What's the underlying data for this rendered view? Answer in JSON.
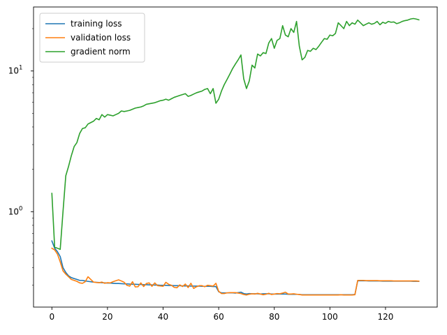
{
  "chart_data": {
    "type": "line",
    "title": "",
    "xlabel": "",
    "ylabel": "",
    "xlim": [
      -6.6,
      138.6
    ],
    "ylim": [
      0.21,
      28.5
    ],
    "yscale": "log",
    "grid": false,
    "legend_position": "upper-left",
    "x_ticks": [
      {
        "value": 0,
        "label": "0"
      },
      {
        "value": 20,
        "label": "20"
      },
      {
        "value": 40,
        "label": "40"
      },
      {
        "value": 60,
        "label": "60"
      },
      {
        "value": 80,
        "label": "80"
      },
      {
        "value": 100,
        "label": "100"
      },
      {
        "value": 120,
        "label": "120"
      }
    ],
    "y_ticks": [
      {
        "value": 1,
        "base": "10",
        "exp": "0"
      },
      {
        "value": 10,
        "base": "10",
        "exp": "1"
      }
    ],
    "series": [
      {
        "name": "training loss",
        "color": "#1f77b4",
        "x": [
          0,
          1,
          2,
          3,
          4,
          5,
          6,
          7,
          8,
          9,
          10,
          11,
          12,
          13,
          14,
          15,
          16,
          17,
          18,
          19,
          20,
          21,
          22,
          23,
          24,
          25,
          26,
          27,
          28,
          29,
          30,
          31,
          32,
          33,
          34,
          35,
          36,
          37,
          38,
          39,
          40,
          41,
          42,
          43,
          44,
          45,
          46,
          47,
          48,
          49,
          50,
          51,
          52,
          53,
          54,
          55,
          56,
          57,
          58,
          59,
          60,
          61,
          62,
          63,
          64,
          65,
          66,
          67,
          68,
          69,
          70,
          71,
          72,
          73,
          74,
          75,
          76,
          77,
          78,
          79,
          80,
          81,
          82,
          83,
          84,
          85,
          86,
          87,
          88,
          89,
          90,
          91,
          92,
          93,
          94,
          95,
          96,
          97,
          98,
          99,
          100,
          101,
          102,
          103,
          104,
          105,
          106,
          107,
          108,
          109,
          110,
          111,
          112,
          113,
          114,
          115,
          116,
          117,
          118,
          119,
          120,
          121,
          122,
          123,
          124,
          125,
          126,
          127,
          128,
          129,
          130,
          131,
          132
        ],
        "values": [
          0.62,
          0.55,
          0.52,
          0.48,
          0.4,
          0.37,
          0.35,
          0.34,
          0.335,
          0.33,
          0.325,
          0.325,
          0.322,
          0.32,
          0.318,
          0.316,
          0.315,
          0.314,
          0.313,
          0.312,
          0.311,
          0.311,
          0.31,
          0.309,
          0.309,
          0.308,
          0.307,
          0.307,
          0.306,
          0.305,
          0.305,
          0.304,
          0.304,
          0.303,
          0.303,
          0.302,
          0.302,
          0.301,
          0.301,
          0.3,
          0.3,
          0.3,
          0.299,
          0.299,
          0.298,
          0.298,
          0.298,
          0.297,
          0.297,
          0.297,
          0.296,
          0.296,
          0.296,
          0.296,
          0.295,
          0.295,
          0.295,
          0.295,
          0.294,
          0.294,
          0.27,
          0.265,
          0.265,
          0.265,
          0.265,
          0.265,
          0.264,
          0.266,
          0.268,
          0.262,
          0.26,
          0.262,
          0.261,
          0.261,
          0.261,
          0.26,
          0.261,
          0.261,
          0.261,
          0.26,
          0.26,
          0.26,
          0.26,
          0.26,
          0.26,
          0.259,
          0.259,
          0.259,
          0.259,
          0.258,
          0.257,
          0.257,
          0.257,
          0.257,
          0.257,
          0.257,
          0.257,
          0.257,
          0.257,
          0.257,
          0.257,
          0.257,
          0.257,
          0.257,
          0.257,
          0.257,
          0.257,
          0.257,
          0.257,
          0.258,
          0.323,
          0.323,
          0.323,
          0.323,
          0.322,
          0.322,
          0.322,
          0.322,
          0.322,
          0.321,
          0.321,
          0.321,
          0.321,
          0.321,
          0.321,
          0.321,
          0.321,
          0.321,
          0.321,
          0.321,
          0.32,
          0.32,
          0.32
        ]
      },
      {
        "name": "validation loss",
        "color": "#ff7f0e",
        "x": [
          0,
          1,
          2,
          3,
          4,
          5,
          6,
          7,
          8,
          9,
          10,
          11,
          12,
          13,
          14,
          15,
          16,
          17,
          18,
          19,
          20,
          21,
          22,
          23,
          24,
          25,
          26,
          27,
          28,
          29,
          30,
          31,
          32,
          33,
          34,
          35,
          36,
          37,
          38,
          39,
          40,
          41,
          42,
          43,
          44,
          45,
          46,
          47,
          48,
          49,
          50,
          51,
          52,
          53,
          54,
          55,
          56,
          57,
          58,
          59,
          60,
          61,
          62,
          63,
          64,
          65,
          66,
          67,
          68,
          69,
          70,
          71,
          72,
          73,
          74,
          75,
          76,
          77,
          78,
          79,
          80,
          81,
          82,
          83,
          84,
          85,
          86,
          87,
          88,
          89,
          90,
          91,
          92,
          93,
          94,
          95,
          96,
          97,
          98,
          99,
          100,
          101,
          102,
          103,
          104,
          105,
          106,
          107,
          108,
          109,
          110,
          111,
          112,
          113,
          114,
          115,
          116,
          117,
          118,
          119,
          120,
          121,
          122,
          123,
          124,
          125,
          126,
          127,
          128,
          129,
          130,
          131,
          132
        ],
        "values": [
          0.55,
          0.535,
          0.5,
          0.44,
          0.38,
          0.36,
          0.345,
          0.33,
          0.325,
          0.32,
          0.312,
          0.31,
          0.318,
          0.345,
          0.33,
          0.316,
          0.314,
          0.313,
          0.316,
          0.31,
          0.313,
          0.312,
          0.318,
          0.323,
          0.328,
          0.322,
          0.315,
          0.3,
          0.296,
          0.318,
          0.292,
          0.293,
          0.312,
          0.294,
          0.309,
          0.312,
          0.295,
          0.312,
          0.298,
          0.297,
          0.295,
          0.315,
          0.305,
          0.3,
          0.29,
          0.288,
          0.302,
          0.294,
          0.306,
          0.289,
          0.31,
          0.285,
          0.293,
          0.298,
          0.298,
          0.293,
          0.3,
          0.298,
          0.296,
          0.31,
          0.272,
          0.262,
          0.262,
          0.265,
          0.266,
          0.266,
          0.266,
          0.264,
          0.262,
          0.258,
          0.256,
          0.259,
          0.261,
          0.26,
          0.263,
          0.26,
          0.257,
          0.259,
          0.263,
          0.258,
          0.26,
          0.262,
          0.261,
          0.264,
          0.268,
          0.26,
          0.26,
          0.261,
          0.259,
          0.258,
          0.256,
          0.256,
          0.256,
          0.256,
          0.256,
          0.256,
          0.256,
          0.256,
          0.256,
          0.256,
          0.256,
          0.256,
          0.256,
          0.256,
          0.257,
          0.256,
          0.256,
          0.256,
          0.256,
          0.257,
          0.325,
          0.325,
          0.325,
          0.324,
          0.324,
          0.324,
          0.324,
          0.324,
          0.323,
          0.323,
          0.323,
          0.323,
          0.323,
          0.322,
          0.322,
          0.322,
          0.322,
          0.322,
          0.322,
          0.322,
          0.322,
          0.322,
          0.321
        ]
      },
      {
        "name": "gradient norm",
        "color": "#2ca02c",
        "x": [
          0,
          1,
          2,
          3,
          4,
          5,
          6,
          7,
          8,
          9,
          10,
          11,
          12,
          13,
          14,
          15,
          16,
          17,
          18,
          19,
          20,
          21,
          22,
          23,
          24,
          25,
          26,
          27,
          28,
          29,
          30,
          31,
          32,
          33,
          34,
          35,
          36,
          37,
          38,
          39,
          40,
          41,
          42,
          43,
          44,
          45,
          46,
          47,
          48,
          49,
          50,
          51,
          52,
          53,
          54,
          55,
          56,
          57,
          58,
          59,
          60,
          61,
          62,
          63,
          64,
          65,
          66,
          67,
          68,
          69,
          70,
          71,
          72,
          73,
          74,
          75,
          76,
          77,
          78,
          79,
          80,
          81,
          82,
          83,
          84,
          85,
          86,
          87,
          88,
          89,
          90,
          91,
          92,
          93,
          94,
          95,
          96,
          97,
          98,
          99,
          100,
          101,
          102,
          103,
          104,
          105,
          106,
          107,
          108,
          109,
          110,
          111,
          112,
          113,
          114,
          115,
          116,
          117,
          118,
          119,
          120,
          121,
          122,
          123,
          124,
          125,
          126,
          127,
          128,
          129,
          130,
          131,
          132
        ],
        "values": [
          1.35,
          0.56,
          0.55,
          0.54,
          1.0,
          1.8,
          2.1,
          2.5,
          2.9,
          3.1,
          3.6,
          3.9,
          3.95,
          4.2,
          4.3,
          4.4,
          4.6,
          4.5,
          4.9,
          4.7,
          4.9,
          4.85,
          4.8,
          4.9,
          5.0,
          5.2,
          5.15,
          5.2,
          5.25,
          5.35,
          5.45,
          5.5,
          5.55,
          5.65,
          5.8,
          5.85,
          5.9,
          5.95,
          6.05,
          6.15,
          6.2,
          6.3,
          6.2,
          6.35,
          6.5,
          6.6,
          6.7,
          6.8,
          6.9,
          6.6,
          6.7,
          6.85,
          7.0,
          7.1,
          7.2,
          7.4,
          7.5,
          6.9,
          7.5,
          5.9,
          6.3,
          7.2,
          8.0,
          8.7,
          9.5,
          10.4,
          11.2,
          12.0,
          13.0,
          8.8,
          7.5,
          8.5,
          11.0,
          10.5,
          13.2,
          12.8,
          13.5,
          13.3,
          15.8,
          17.0,
          14.5,
          16.5,
          17.0,
          21.0,
          18.0,
          17.5,
          20.0,
          18.8,
          22.5,
          15.0,
          12.0,
          12.5,
          14.0,
          13.8,
          14.5,
          14.2,
          15.0,
          16.0,
          17.0,
          16.8,
          18.0,
          17.8,
          18.5,
          22.0,
          21.0,
          20.0,
          22.5,
          21.0,
          22.0,
          21.5,
          23.0,
          22.0,
          21.0,
          21.5,
          22.0,
          21.5,
          21.8,
          22.5,
          21.3,
          22.2,
          21.8,
          22.5,
          22.2,
          22.3,
          21.7,
          22.0,
          22.5,
          22.8,
          23.0,
          23.4,
          23.6,
          23.4,
          23.1
        ]
      }
    ]
  }
}
